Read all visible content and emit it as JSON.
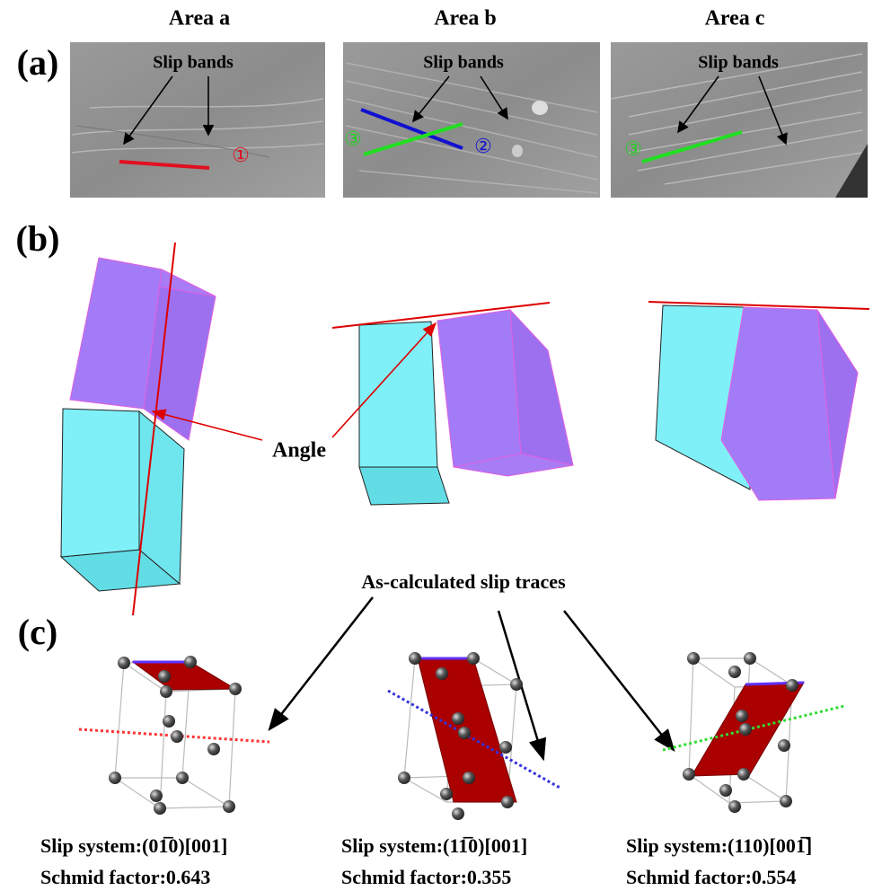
{
  "panels": [
    {
      "label": "(a)"
    },
    {
      "label": "(b)",
      "angle_label": "Angle"
    },
    {
      "label": "(c)",
      "traces_label": "As-calculated slip traces"
    }
  ],
  "areas": [
    {
      "title": "Area a",
      "slip_bands": "Slip bands",
      "band_labels": [
        "①"
      ]
    },
    {
      "title": "Area b",
      "slip_bands": "Slip bands",
      "band_labels": [
        "③",
        "②"
      ]
    },
    {
      "title": "Area c",
      "slip_bands": "Slip bands",
      "band_labels": [
        "③"
      ]
    }
  ],
  "results": [
    {
      "slip_system": "Slip system:(01̅0)[001]",
      "schmid_factor": "Schmid factor:0.643"
    },
    {
      "slip_system": "Slip system:(11̅0)[001]",
      "schmid_factor": "Schmid factor:0.355"
    },
    {
      "slip_system": "Slip system:(110)[001̅]",
      "schmid_factor": "Schmid factor:0.554"
    }
  ]
}
